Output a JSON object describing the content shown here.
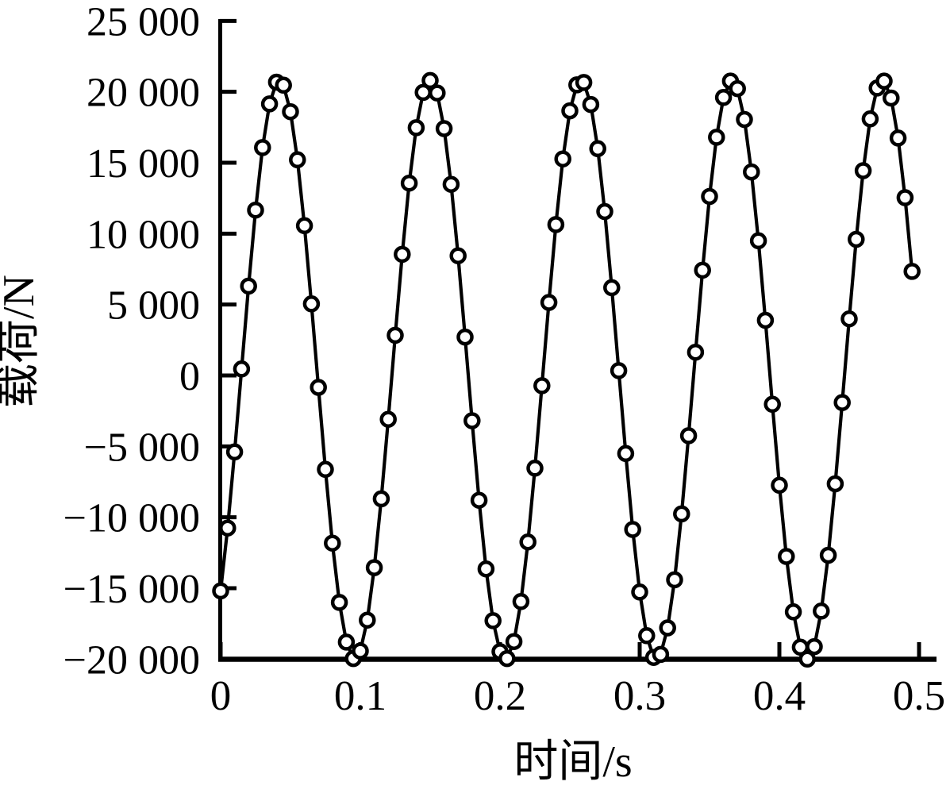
{
  "figure": {
    "background_color": "#ffffff",
    "axis_color": "#000000",
    "line_color": "#000000",
    "marker_fill": "#ffffff",
    "marker_stroke": "#000000"
  },
  "chart_data": {
    "type": "line",
    "title": "",
    "xlabel": "时间/s",
    "ylabel": "载荷/N",
    "xlim": [
      0,
      0.5
    ],
    "ylim": [
      -20000,
      25000
    ],
    "grid": false,
    "legend": null,
    "marker_style": "open-circle",
    "x_ticks": [
      0,
      0.1,
      0.2,
      0.3,
      0.4,
      0.5
    ],
    "x_tick_labels": [
      "0",
      "0.1",
      "0.2",
      "0.3",
      "0.4",
      "0.5"
    ],
    "y_ticks": [
      25000,
      20000,
      15000,
      10000,
      5000,
      0,
      -5000,
      -10000,
      -15000,
      -20000
    ],
    "y_tick_labels": [
      "25 000",
      "20 000",
      "15 000",
      "10 000",
      "5 000",
      "0",
      "−5 000",
      "−10 000",
      "−15 000",
      "−20 000"
    ],
    "series": [
      {
        "name": "载荷",
        "x": [
          0,
          0.005,
          0.01,
          0.015,
          0.02,
          0.025,
          0.03,
          0.035,
          0.04,
          0.045,
          0.05,
          0.055,
          0.06,
          0.065,
          0.07,
          0.075,
          0.08,
          0.085,
          0.09,
          0.095,
          0.1,
          0.105,
          0.11,
          0.115,
          0.12,
          0.125,
          0.13,
          0.135,
          0.14,
          0.145,
          0.15,
          0.155,
          0.16,
          0.165,
          0.17,
          0.175,
          0.18,
          0.185,
          0.19,
          0.195,
          0.2,
          0.205,
          0.21,
          0.215,
          0.22,
          0.225,
          0.23,
          0.235,
          0.24,
          0.245,
          0.25,
          0.255,
          0.26,
          0.265,
          0.27,
          0.275,
          0.28,
          0.285,
          0.29,
          0.295,
          0.3,
          0.305,
          0.31,
          0.315,
          0.32,
          0.325,
          0.33,
          0.335,
          0.34,
          0.345,
          0.35,
          0.355,
          0.36,
          0.365,
          0.37,
          0.375,
          0.38,
          0.385,
          0.39,
          0.395,
          0.4,
          0.405,
          0.41,
          0.415,
          0.42,
          0.425,
          0.43,
          0.435,
          0.44,
          0.445,
          0.45,
          0.455,
          0.46,
          0.465,
          0.47,
          0.475,
          0.48,
          0.485,
          0.49,
          0.495
        ],
        "y": [
          -15190,
          -10760,
          -5390,
          460,
          6300,
          11660,
          16070,
          19150,
          20680,
          20470,
          18600,
          15210,
          10560,
          5050,
          -840,
          -6620,
          -11820,
          -16000,
          -18800,
          -19960,
          -19430,
          -17250,
          -13550,
          -8700,
          -3090,
          2830,
          8540,
          13560,
          17470,
          19960,
          20800,
          19920,
          17410,
          13480,
          8440,
          2710,
          -3190,
          -8800,
          -13640,
          -17290,
          -19470,
          -19960,
          -18760,
          -15940,
          -11740,
          -6540,
          -720,
          5150,
          10640,
          15270,
          18660,
          20490,
          20660,
          19110,
          15990,
          11560,
          6190,
          340,
          -5500,
          -10860,
          -15270,
          -18350,
          -19880,
          -19670,
          -17800,
          -14410,
          -9760,
          -4250,
          1640,
          7420,
          12620,
          16800,
          19600,
          20760,
          20230,
          18050,
          14350,
          9500,
          3890,
          -2030,
          -7740,
          -12760,
          -16670,
          -19160,
          -20000,
          -19120,
          -16610,
          -12680,
          -7640,
          -1910,
          3990,
          9600,
          14440,
          18090,
          20270,
          20760,
          19560,
          16740,
          12540,
          7340
        ]
      }
    ]
  }
}
